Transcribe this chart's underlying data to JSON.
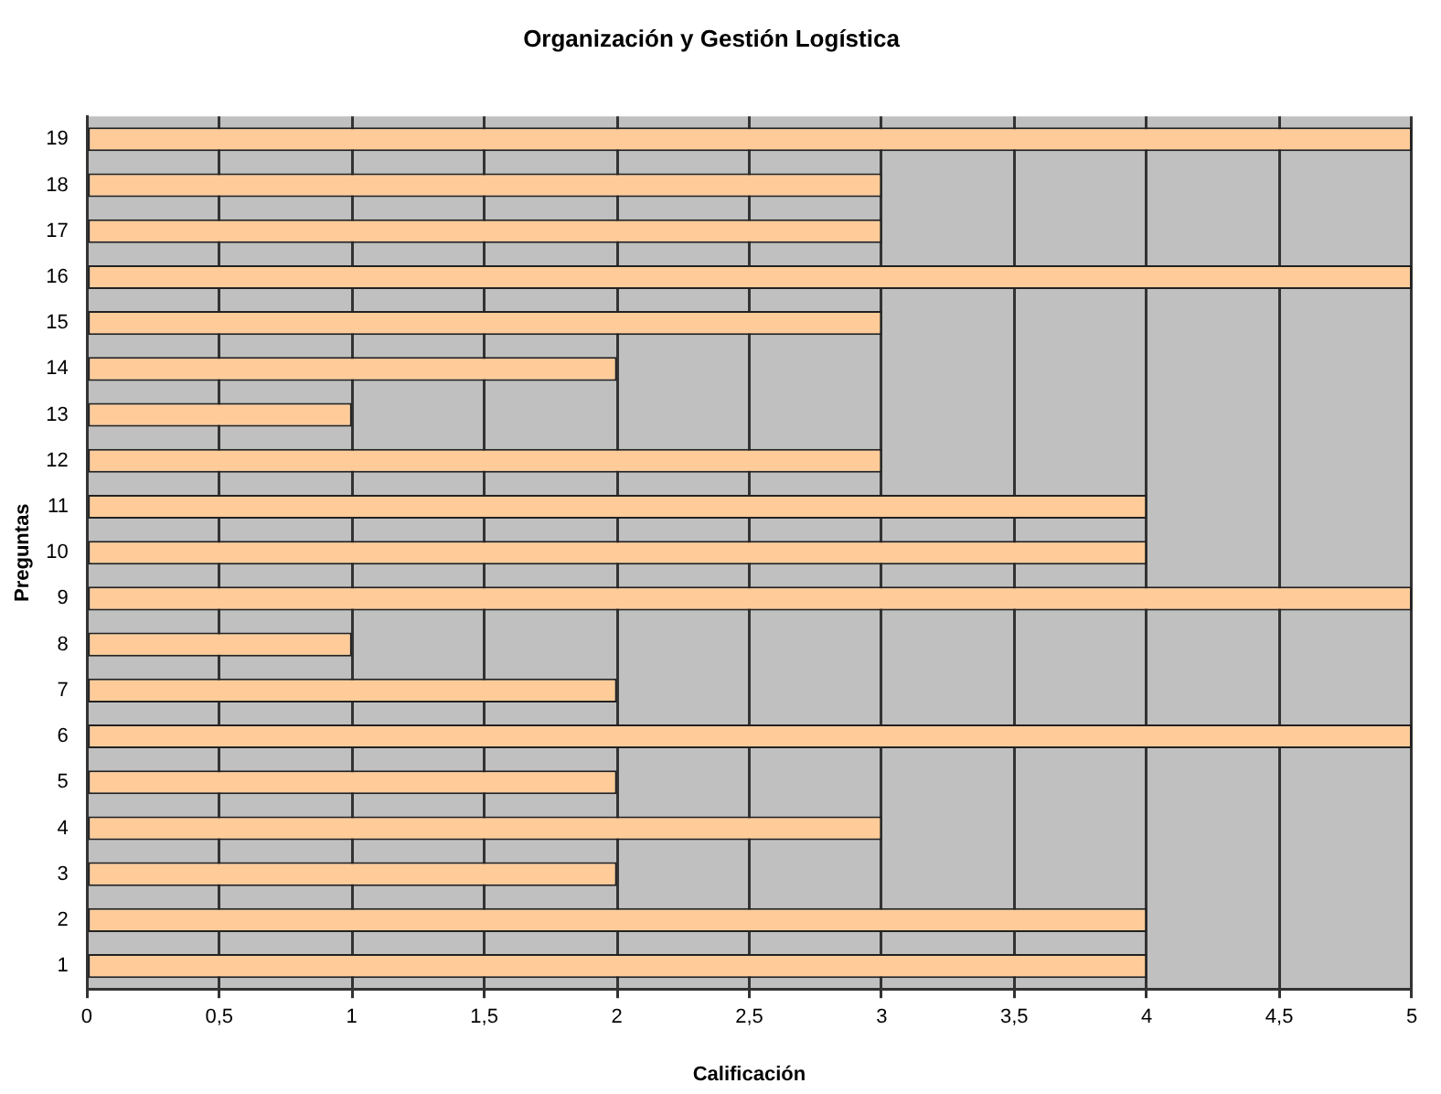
{
  "chart_data": {
    "type": "bar",
    "orientation": "horizontal",
    "title": "Organización y Gestión Logística",
    "xlabel": "Calificación",
    "ylabel": "Preguntas",
    "categories": [
      "19",
      "18",
      "17",
      "16",
      "15",
      "14",
      "13",
      "12",
      "11",
      "10",
      "9",
      "8",
      "7",
      "6",
      "5",
      "4",
      "3",
      "2",
      "1"
    ],
    "values": [
      5,
      3,
      3,
      5,
      3,
      2,
      1,
      3,
      4,
      4,
      5,
      1,
      2,
      5,
      2,
      3,
      2,
      4,
      4
    ],
    "color": "#ffcc99",
    "xlim": [
      0,
      5
    ],
    "xticks": [
      0,
      {
        "value": 0.5,
        "label": "0,5"
      },
      1,
      {
        "value": 1.5,
        "label": "1,5"
      },
      2,
      {
        "value": 2.5,
        "label": "2,5"
      },
      3,
      {
        "value": 3.5,
        "label": "3,5"
      },
      4,
      {
        "value": 4.5,
        "label": "4,5"
      },
      5
    ],
    "grid": "x"
  }
}
